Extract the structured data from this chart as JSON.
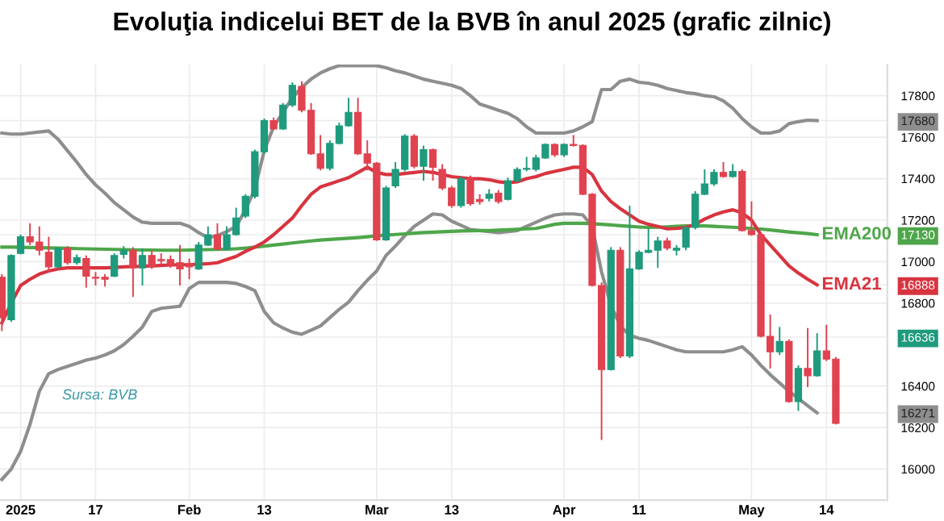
{
  "chart_data": {
    "type": "candlestick",
    "title": "Evoluţia indicelui BET de la BVB în anul 2025 (grafic zilnic)",
    "categories": [
      null,
      null,
      "2025",
      null,
      null,
      null,
      null,
      null,
      null,
      null,
      "17",
      null,
      null,
      null,
      null,
      null,
      null,
      null,
      null,
      null,
      "Feb",
      null,
      null,
      null,
      null,
      null,
      null,
      null,
      "13",
      null,
      null,
      null,
      null,
      null,
      null,
      null,
      null,
      null,
      null,
      null,
      "Mar",
      null,
      null,
      null,
      null,
      null,
      null,
      null,
      "13",
      null,
      null,
      null,
      null,
      null,
      null,
      null,
      null,
      null,
      null,
      null,
      "Apr",
      null,
      null,
      null,
      null,
      null,
      null,
      null,
      "11",
      null,
      null,
      null,
      null,
      null,
      null,
      null,
      null,
      null,
      null,
      null,
      "May",
      null,
      null,
      null,
      null,
      null,
      null,
      null,
      "14",
      null
    ],
    "colors": [
      "#e0424f",
      "#1e9a7d",
      "#1e9a7d",
      "#e0424f",
      "#e0424f",
      "#e0424f",
      "#1e9a7d",
      "#e0424f",
      "#1e9a7d",
      "#e0424f",
      "#e0424f",
      "#e0424f",
      "#1e9a7d",
      "#1e9a7d",
      "#e0424f",
      "#1e9a7d",
      "#e0424f",
      "#e0424f",
      "#e0424f",
      "#e0424f",
      "#e0424f",
      "#1e9a7d",
      "#1e9a7d",
      "#e0424f",
      "#1e9a7d",
      "#1e9a7d",
      "#1e9a7d",
      "#1e9a7d",
      "#1e9a7d",
      "#e0424f",
      "#1e9a7d",
      "#1e9a7d",
      "#e0424f",
      "#e0424f",
      "#e0424f",
      "#1e9a7d",
      "#1e9a7d",
      "#1e9a7d",
      "#e0424f",
      "#e0424f",
      "#e0424f",
      "#1e9a7d",
      "#1e9a7d",
      "#1e9a7d",
      "#e0424f",
      "#1e9a7d",
      "#e0424f",
      "#e0424f",
      "#e0424f",
      "#1e9a7d",
      "#e0424f",
      "#e0424f",
      "#1e9a7d",
      "#e0424f",
      "#1e9a7d",
      "#1e9a7d",
      "#1e9a7d",
      "#1e9a7d",
      "#1e9a7d",
      "#e0424f",
      "#1e9a7d",
      "#e0424f",
      "#e0424f",
      "#e0424f",
      "#e0424f",
      "#1e9a7d",
      "#e0424f",
      "#1e9a7d",
      "#1e9a7d",
      "#1e9a7d",
      "#1e9a7d",
      "#e0424f",
      "#1e9a7d",
      "#1e9a7d",
      "#1e9a7d",
      "#1e9a7d",
      "#1e9a7d",
      "#e0424f",
      "#1e9a7d",
      "#e0424f",
      "#e0424f",
      "#e0424f",
      "#e0424f",
      "#1e9a7d",
      "#e0424f",
      "#1e9a7d",
      "#e0424f",
      "#1e9a7d",
      "#e0424f",
      "#e0424f"
    ],
    "ohlc": [
      [
        16925,
        16940,
        16665,
        16730
      ],
      [
        16720,
        17035,
        16710,
        17030
      ],
      [
        17040,
        17130,
        17035,
        17120
      ],
      [
        17120,
        17185,
        17080,
        17095
      ],
      [
        17095,
        17170,
        17030,
        17055
      ],
      [
        17045,
        17120,
        16950,
        16975
      ],
      [
        16975,
        17070,
        16970,
        17065
      ],
      [
        17065,
        17075,
        16985,
        16995
      ],
      [
        16995,
        17035,
        16985,
        17020
      ],
      [
        17015,
        17030,
        16875,
        16930
      ],
      [
        16925,
        16950,
        16885,
        16920
      ],
      [
        16925,
        16940,
        16880,
        16915
      ],
      [
        16930,
        17040,
        16925,
        17030
      ],
      [
        17035,
        17075,
        17015,
        17055
      ],
      [
        17055,
        17070,
        16830,
        16970
      ],
      [
        16970,
        17065,
        16885,
        17030
      ],
      [
        17030,
        17055,
        16965,
        16975
      ],
      [
        17010,
        17040,
        16985,
        17005
      ],
      [
        17010,
        17030,
        16970,
        16985
      ],
      [
        16995,
        17080,
        16885,
        16965
      ],
      [
        16990,
        17015,
        16915,
        16975
      ],
      [
        16965,
        17095,
        16960,
        17080
      ],
      [
        17080,
        17170,
        17075,
        17130
      ],
      [
        17130,
        17185,
        17055,
        17060
      ],
      [
        17060,
        17170,
        17055,
        17130
      ],
      [
        17130,
        17260,
        17125,
        17210
      ],
      [
        17220,
        17325,
        17210,
        17315
      ],
      [
        17315,
        17540,
        17305,
        17530
      ],
      [
        17530,
        17690,
        17520,
        17680
      ],
      [
        17680,
        17695,
        17635,
        17640
      ],
      [
        17640,
        17765,
        17635,
        17755
      ],
      [
        17755,
        17865,
        17745,
        17850
      ],
      [
        17845,
        17870,
        17720,
        17730
      ],
      [
        17730,
        17765,
        17515,
        17520
      ],
      [
        17520,
        17610,
        17440,
        17450
      ],
      [
        17450,
        17585,
        17440,
        17570
      ],
      [
        17570,
        17670,
        17565,
        17655
      ],
      [
        17655,
        17790,
        17650,
        17720
      ],
      [
        17720,
        17790,
        17515,
        17520
      ],
      [
        17520,
        17585,
        17440,
        17475
      ],
      [
        17475,
        17480,
        17100,
        17105
      ],
      [
        17105,
        17365,
        17100,
        17355
      ],
      [
        17365,
        17480,
        17355,
        17445
      ],
      [
        17445,
        17615,
        17435,
        17605
      ],
      [
        17605,
        17615,
        17450,
        17460
      ],
      [
        17460,
        17560,
        17390,
        17540
      ],
      [
        17540,
        17545,
        17390,
        17455
      ],
      [
        17445,
        17470,
        17345,
        17355
      ],
      [
        17355,
        17365,
        17260,
        17270
      ],
      [
        17270,
        17410,
        17260,
        17400
      ],
      [
        17400,
        17415,
        17270,
        17280
      ],
      [
        17300,
        17325,
        17275,
        17290
      ],
      [
        17305,
        17350,
        17290,
        17325
      ],
      [
        17330,
        17345,
        17280,
        17290
      ],
      [
        17300,
        17405,
        17295,
        17390
      ],
      [
        17390,
        17455,
        17385,
        17445
      ],
      [
        17445,
        17505,
        17435,
        17450
      ],
      [
        17445,
        17515,
        17435,
        17500
      ],
      [
        17500,
        17570,
        17495,
        17565
      ],
      [
        17565,
        17570,
        17505,
        17515
      ],
      [
        17515,
        17570,
        17505,
        17565
      ],
      [
        17565,
        17610,
        17555,
        17560
      ],
      [
        17560,
        17565,
        17320,
        17325
      ],
      [
        17325,
        17330,
        16880,
        16885
      ],
      [
        16885,
        16900,
        16140,
        16480
      ],
      [
        16480,
        17070,
        16475,
        17055
      ],
      [
        17055,
        17070,
        16535,
        16545
      ],
      [
        16545,
        17270,
        16535,
        16965
      ],
      [
        16965,
        17055,
        16960,
        17045
      ],
      [
        17045,
        17160,
        17040,
        17055
      ],
      [
        17055,
        17120,
        16970,
        17100
      ],
      [
        17100,
        17115,
        17055,
        17065
      ],
      [
        17055,
        17080,
        17030,
        17065
      ],
      [
        17070,
        17170,
        17055,
        17165
      ],
      [
        17165,
        17340,
        17155,
        17325
      ],
      [
        17325,
        17445,
        17320,
        17375
      ],
      [
        17375,
        17445,
        17365,
        17430
      ],
      [
        17430,
        17480,
        17405,
        17410
      ],
      [
        17410,
        17470,
        17405,
        17435
      ],
      [
        17435,
        17445,
        17145,
        17150
      ],
      [
        17150,
        17290,
        17125,
        17130
      ],
      [
        17130,
        17140,
        16635,
        16640
      ],
      [
        16640,
        16745,
        16485,
        16565
      ],
      [
        16565,
        16685,
        16550,
        16615
      ],
      [
        16615,
        16625,
        16320,
        16325
      ],
      [
        16325,
        16500,
        16280,
        16485
      ],
      [
        16485,
        16680,
        16395,
        16450
      ],
      [
        16450,
        16655,
        16445,
        16570
      ],
      [
        16570,
        16695,
        16520,
        16530
      ],
      [
        16530,
        16540,
        16215,
        16220
      ]
    ],
    "series": [
      {
        "type": "line",
        "color": "#8e8e8e",
        "values": [
          17620,
          17615,
          17615,
          17620,
          17625,
          17630,
          17590,
          17535,
          17480,
          17420,
          17370,
          17330,
          17285,
          17250,
          17215,
          17190,
          17185,
          17185,
          17185,
          17185,
          17170,
          17140,
          17115,
          17125,
          17145,
          17170,
          17250,
          17350,
          17535,
          17650,
          17720,
          17790,
          17840,
          17880,
          17910,
          17930,
          17945,
          17945,
          17945,
          17945,
          17945,
          17935,
          17920,
          17910,
          17895,
          17880,
          17870,
          17860,
          17850,
          17835,
          17800,
          17760,
          17745,
          17730,
          17715,
          17690,
          17650,
          17620,
          17620,
          17620,
          17620,
          17630,
          17650,
          17675,
          17830,
          17830,
          17870,
          17880,
          17865,
          17860,
          17850,
          17835,
          17825,
          17815,
          17810,
          17800,
          17795,
          17775,
          17740,
          17690,
          17650,
          17620,
          17620,
          17630,
          17665,
          17675,
          17682,
          17680,
          null,
          null
        ]
      },
      {
        "type": "line",
        "color": "#8e8e8e",
        "values": [
          15950,
          16000,
          16085,
          16215,
          16375,
          16460,
          16480,
          16495,
          16510,
          16525,
          16535,
          16550,
          16570,
          16600,
          16640,
          16685,
          16760,
          16775,
          16780,
          16785,
          16870,
          16900,
          16900,
          16900,
          16900,
          16895,
          16880,
          16860,
          16760,
          16705,
          16680,
          16660,
          16650,
          16670,
          16690,
          16730,
          16770,
          16805,
          16860,
          16910,
          16955,
          17030,
          17075,
          17125,
          17170,
          17200,
          17230,
          17225,
          17195,
          17175,
          17155,
          17150,
          17145,
          17140,
          17145,
          17150,
          17170,
          17190,
          17210,
          17225,
          17230,
          17230,
          17225,
          17170,
          16950,
          16790,
          16690,
          16645,
          16630,
          16620,
          16605,
          16590,
          16575,
          16565,
          16565,
          16565,
          16565,
          16565,
          16575,
          16590,
          16550,
          16500,
          16455,
          16415,
          16375,
          16340,
          16305,
          16271,
          null,
          null
        ]
      },
      {
        "type": "line",
        "name": "EMA200",
        "color": "#4ea64a",
        "values": [
          17070,
          17070,
          17069,
          17068,
          17067,
          17066,
          17065,
          17064,
          17063,
          17062,
          17061,
          17060,
          17059,
          17058,
          17057,
          17056,
          17056,
          17055,
          17055,
          17055,
          17056,
          17057,
          17058,
          17059,
          17060,
          17062,
          17065,
          17070,
          17075,
          17080,
          17085,
          17090,
          17095,
          17100,
          17104,
          17107,
          17110,
          17113,
          17116,
          17120,
          17125,
          17128,
          17131,
          17134,
          17137,
          17140,
          17142,
          17144,
          17146,
          17148,
          17149,
          17150,
          17150,
          17152,
          17154,
          17156,
          17158,
          17160,
          17170,
          17180,
          17185,
          17185,
          17185,
          17183,
          17180,
          17177,
          17173,
          17170,
          17167,
          17165,
          17166,
          17168,
          17170,
          17172,
          17172,
          17172,
          17170,
          17168,
          17166,
          17163,
          17160,
          17157,
          17153,
          17148,
          17143,
          17139,
          17135,
          17130,
          null,
          null
        ]
      },
      {
        "type": "line",
        "name": "EMA21",
        "color": "#d8343f",
        "values": [
          16705,
          16800,
          16885,
          16915,
          16940,
          16955,
          16965,
          16970,
          16970,
          16970,
          16970,
          16970,
          16972,
          16975,
          16977,
          16978,
          16980,
          16982,
          16984,
          16985,
          16985,
          16988,
          16990,
          16995,
          17010,
          17025,
          17050,
          17070,
          17095,
          17130,
          17170,
          17210,
          17270,
          17325,
          17360,
          17375,
          17390,
          17405,
          17430,
          17455,
          17430,
          17420,
          17420,
          17425,
          17430,
          17435,
          17430,
          17420,
          17410,
          17405,
          17400,
          17400,
          17395,
          17385,
          17380,
          17385,
          17400,
          17410,
          17425,
          17435,
          17445,
          17455,
          17455,
          17420,
          17340,
          17290,
          17255,
          17225,
          17195,
          17180,
          17170,
          17158,
          17160,
          17165,
          17180,
          17205,
          17225,
          17240,
          17250,
          17235,
          17200,
          17130,
          17080,
          17030,
          16980,
          16945,
          16915,
          16888,
          null,
          null
        ]
      }
    ],
    "ylim": [
      15850,
      17950
    ],
    "yticks": [
      16000,
      16200,
      {
        "value": 16271,
        "label": "16271"
      },
      16400,
      {
        "value": 16636,
        "label": "16636"
      },
      16800,
      {
        "value": 16888,
        "label": "16888"
      },
      17000,
      {
        "value": 17130,
        "label": "17130"
      },
      17200,
      17400,
      17600,
      {
        "value": 17680,
        "label": "17680"
      },
      17800
    ],
    "grid": true,
    "legend": "right",
    "annotations": [
      "Sursa: BVB"
    ]
  }
}
